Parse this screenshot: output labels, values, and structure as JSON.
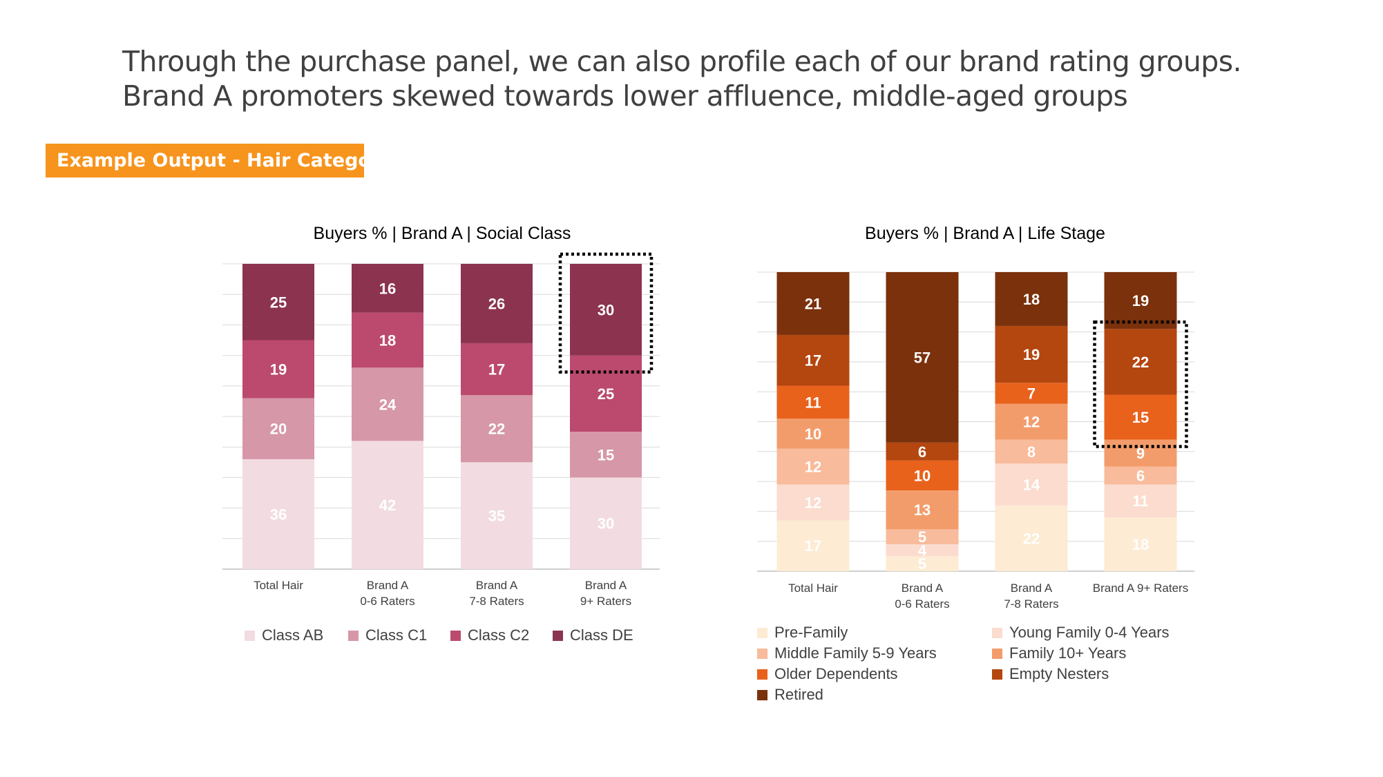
{
  "headline": {
    "line1": "Through the purchase panel, we can also profile each of our brand rating groups.",
    "line2": "Brand A promoters skewed towards lower affluence, middle-aged groups"
  },
  "tag": {
    "label": "Example Output - Hair Category"
  },
  "chart_data": [
    {
      "type": "bar",
      "stacked": true,
      "title": "Buyers % | Brand A | Social Class",
      "categories": [
        [
          "Total Hair"
        ],
        [
          "Brand A",
          "0-6 Raters"
        ],
        [
          "Brand A",
          "7-8 Raters"
        ],
        [
          "Brand A",
          "9+ Raters"
        ]
      ],
      "highlight_category": 3,
      "highlight_series": [
        2,
        3
      ],
      "series": [
        {
          "name": "Class AB",
          "color": "#f2dce1",
          "label_color": "#ffffff",
          "values": [
            36,
            42,
            35,
            30
          ]
        },
        {
          "name": "Class C1",
          "color": "#d697a8",
          "label_color": "#ffffff",
          "values": [
            20,
            24,
            22,
            15
          ]
        },
        {
          "name": "Class C2",
          "color": "#bb4a6e",
          "label_color": "#ffffff",
          "values": [
            19,
            18,
            17,
            25
          ]
        },
        {
          "name": "Class DE",
          "color": "#8c3350",
          "label_color": "#ffffff",
          "values": [
            25,
            16,
            26,
            30
          ]
        }
      ],
      "legend_position": "bottom"
    },
    {
      "type": "bar",
      "stacked": true,
      "title": "Buyers % | Brand A | Life Stage",
      "categories": [
        [
          "Total Hair"
        ],
        [
          "Brand A",
          "0-6 Raters"
        ],
        [
          "Brand A",
          "7-8 Raters"
        ],
        [
          "Brand A 9+ Raters"
        ]
      ],
      "highlight_category": 3,
      "highlight_series": [
        4,
        5
      ],
      "series": [
        {
          "name": "Pre-Family",
          "color": "#fdebd3",
          "label_color": "#ffffff",
          "values": [
            17,
            5,
            22,
            18
          ]
        },
        {
          "name": "Young Family 0-4 Years",
          "color": "#fbdccf",
          "label_color": "#ffffff",
          "values": [
            12,
            4,
            14,
            11
          ]
        },
        {
          "name": "Middle Family 5-9 Years",
          "color": "#f8bb9b",
          "label_color": "#ffffff",
          "values": [
            12,
            5,
            8,
            6
          ]
        },
        {
          "name": "Family 10+ Years",
          "color": "#f39c6b",
          "label_color": "#ffffff",
          "values": [
            10,
            13,
            12,
            9
          ]
        },
        {
          "name": "Older Dependents",
          "color": "#e8621c",
          "label_color": "#ffffff",
          "values": [
            11,
            10,
            7,
            15
          ]
        },
        {
          "name": "Empty Nesters",
          "color": "#b4460f",
          "label_color": "#ffffff",
          "values": [
            17,
            6,
            19,
            22
          ]
        },
        {
          "name": "Retired",
          "color": "#7a310c",
          "label_color": "#ffffff",
          "values": [
            21,
            57,
            18,
            19
          ]
        }
      ],
      "legend_position": "bottom"
    }
  ]
}
